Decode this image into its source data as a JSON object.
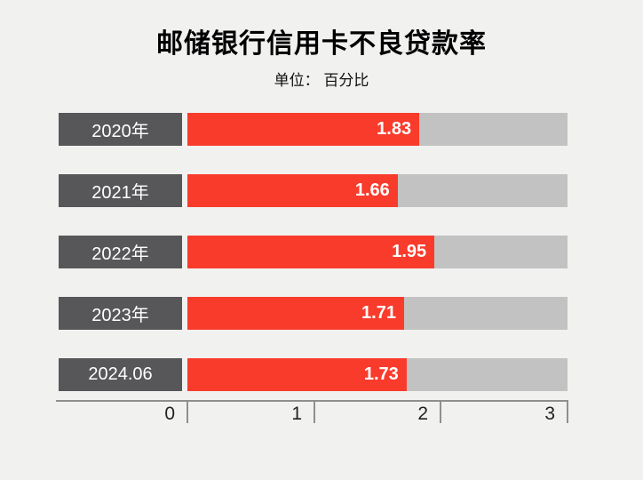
{
  "title": "邮储银行信用卡不良贷款率",
  "subtitle": "单位： 百分比",
  "colors": {
    "background": "#f1f1f0",
    "bar_red": "#f93b2c",
    "bar_track_gray": "#c2c2c2",
    "year_box_gray": "#575759",
    "axis_gray": "#8f8f8f",
    "title_text": "#000000",
    "bar_value_text": "#ffffff"
  },
  "chart_data": {
    "type": "bar",
    "orientation": "horizontal",
    "title": "邮储银行信用卡不良贷款率",
    "subtitle": "单位： 百分比",
    "unit": "百分比",
    "categories": [
      "2020年",
      "2021年",
      "2022年",
      "2023年",
      "2024.06"
    ],
    "values": [
      1.83,
      1.66,
      1.95,
      1.71,
      1.73
    ],
    "value_labels": [
      "1.83",
      "1.66",
      "1.95",
      "1.71",
      "1.73"
    ],
    "xlabel": "",
    "ylabel": "",
    "xlim": [
      0,
      3
    ],
    "x_ticks": [
      "0",
      "1",
      "2",
      "3"
    ],
    "grid": false,
    "legend": false
  }
}
